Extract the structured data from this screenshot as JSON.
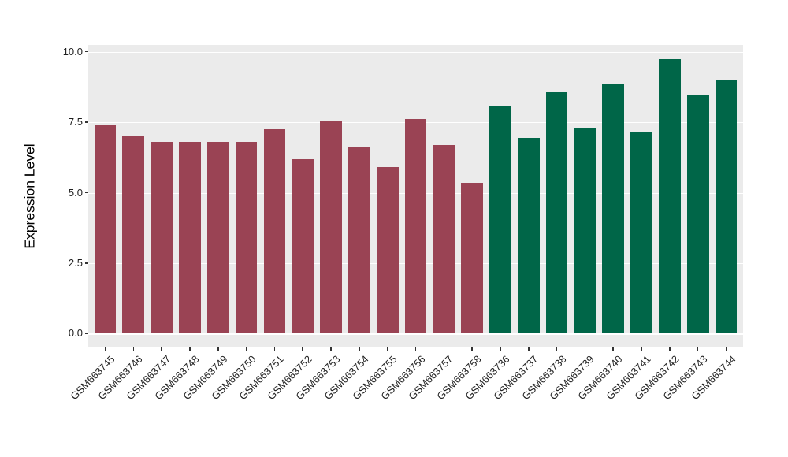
{
  "chart_data": {
    "type": "bar",
    "title": "",
    "xlabel": "",
    "ylabel": "Expression Level",
    "ylim": [
      0,
      10.0
    ],
    "yticks": [
      0,
      2.5,
      5.0,
      7.5,
      10.0
    ],
    "ytick_labels": [
      "0.0",
      "2.5",
      "5.0",
      "7.5",
      "10.0"
    ],
    "minor_gridlines": [
      1.25,
      3.75,
      6.25,
      8.75
    ],
    "grid": true,
    "legend_position": "none",
    "categories": [
      "GSM663745",
      "GSM663746",
      "GSM663747",
      "GSM663748",
      "GSM663749",
      "GSM663750",
      "GSM663751",
      "GSM663752",
      "GSM663753",
      "GSM663754",
      "GSM663755",
      "GSM663756",
      "GSM663757",
      "GSM663758",
      "GSM663736",
      "GSM663737",
      "GSM663738",
      "GSM663739",
      "GSM663740",
      "GSM663741",
      "GSM663742",
      "GSM663743",
      "GSM663744"
    ],
    "values": [
      7.4,
      7.0,
      6.8,
      6.8,
      6.8,
      6.8,
      7.25,
      6.2,
      7.55,
      6.6,
      5.9,
      7.6,
      6.7,
      5.35,
      8.05,
      6.95,
      8.55,
      7.3,
      8.85,
      7.15,
      9.75,
      8.45,
      9.0
    ],
    "bar_group_index": [
      0,
      0,
      0,
      0,
      0,
      0,
      0,
      0,
      0,
      0,
      0,
      0,
      0,
      0,
      1,
      1,
      1,
      1,
      1,
      1,
      1,
      1,
      1
    ],
    "group_colors": [
      "#9A4354",
      "#006648"
    ]
  },
  "colors": {
    "panel_background": "#EBEBEB",
    "gridline": "#FFFFFF",
    "tick_mark": "#333333",
    "tick_label_text": "#1F1F1F",
    "axis_title_text": "#000000",
    "figure_background": "#FFFFFF"
  }
}
